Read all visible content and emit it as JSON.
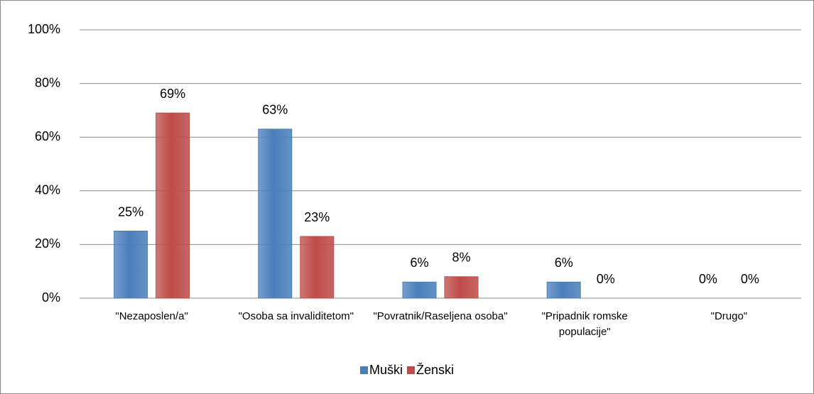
{
  "chart_data": {
    "type": "bar",
    "categories": [
      "\"Nezaposlen/a\"",
      "\"Osoba sa invaliditetom\"",
      "\"Povratnik/Raseljena osoba\"",
      "\"Pripadnik romske populacije\"",
      "\"Drugo\""
    ],
    "series": [
      {
        "name": "Muški",
        "color": "#4a7ebb",
        "values": [
          25,
          63,
          6,
          6,
          0
        ],
        "value_labels": [
          "25%",
          "63%",
          "6%",
          "6%",
          "0%"
        ]
      },
      {
        "name": "Ženski",
        "color": "#be4b48",
        "values": [
          69,
          23,
          8,
          0,
          0
        ],
        "value_labels": [
          "69%",
          "23%",
          "8%",
          "0%",
          "0%"
        ]
      }
    ],
    "ylim": [
      0,
      100
    ],
    "yticks": [
      {
        "value": 0,
        "label": "0%"
      },
      {
        "value": 20,
        "label": "20%"
      },
      {
        "value": 40,
        "label": "40%"
      },
      {
        "value": 60,
        "label": "60%"
      },
      {
        "value": 80,
        "label": "80%"
      },
      {
        "value": 100,
        "label": "100%"
      }
    ],
    "grid": true,
    "legend": "bottom"
  }
}
